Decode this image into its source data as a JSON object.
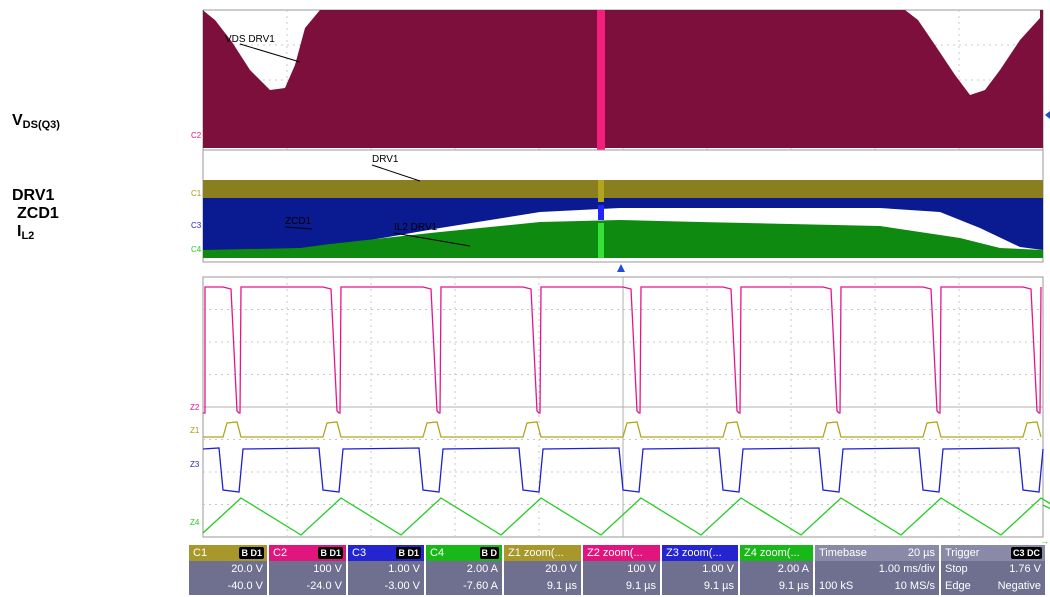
{
  "labels": {
    "vds": {
      "main": "V",
      "sub": "DS(Q3)"
    },
    "drv": "DRV1",
    "zcd": "ZCD1",
    "il": {
      "main": "I",
      "sub": "L2"
    }
  },
  "traces": {
    "top": {
      "name": "VDS DRV1",
      "channel": "C2"
    },
    "mid": {
      "drv_name": "DRV1",
      "zcd_name": "ZCD1",
      "il_name": "IL2 DRV1",
      "channels": [
        "C1",
        "C3",
        "C4"
      ]
    },
    "zoom": {
      "channels": [
        "Z2",
        "Z1",
        "Z3",
        "Z4"
      ]
    }
  },
  "colors": {
    "c1": "#7a7020",
    "c2": "#7d0f3c",
    "c3": "#0a1a90",
    "c4": "#0f8a10",
    "z1": "#b2a41e",
    "z2": "#e5168c",
    "z3": "#1f1fd6",
    "z4": "#22cc22",
    "marker": "#f21f7c"
  },
  "channels": [
    {
      "name": "C1",
      "badge": "B D1",
      "line1": "20.0 V",
      "line2": "-40.0 V",
      "bg": "#a8972a"
    },
    {
      "name": "C2",
      "badge": "B D1",
      "line1": "100 V",
      "line2": "-24.0 V",
      "bg": "#e0167e"
    },
    {
      "name": "C3",
      "badge": "B D1",
      "line1": "1.00 V",
      "line2": "-3.00 V",
      "bg": "#2424d0"
    },
    {
      "name": "C4",
      "badge": "B D",
      "line1": "2.00 A",
      "line2": "-7.60 A",
      "bg": "#18b818"
    },
    {
      "name": "Z1 zoom(...",
      "badge": "",
      "line1": "20.0 V",
      "line2": "9.1 µs",
      "bg": "#a8972a"
    },
    {
      "name": "Z2 zoom(...",
      "badge": "",
      "line1": "100 V",
      "line2": "9.1 µs",
      "bg": "#e0167e"
    },
    {
      "name": "Z3 zoom(...",
      "badge": "",
      "line1": "1.00 V",
      "line2": "9.1 µs",
      "bg": "#2424d0"
    },
    {
      "name": "Z4 zoom(...",
      "badge": "",
      "line1": "2.00 A",
      "line2": "9.1 µs",
      "bg": "#18b818"
    }
  ],
  "timebase": {
    "title": "Timebase",
    "value": "20 µs",
    "line1": "1.00 ms/div",
    "left2": "100 kS",
    "right2": "10 MS/s"
  },
  "trigger": {
    "title": "Trigger",
    "badge": "C3 DC",
    "left1": "Stop",
    "right1": "1.76 V",
    "left2": "Edge",
    "right2": "Negative"
  }
}
